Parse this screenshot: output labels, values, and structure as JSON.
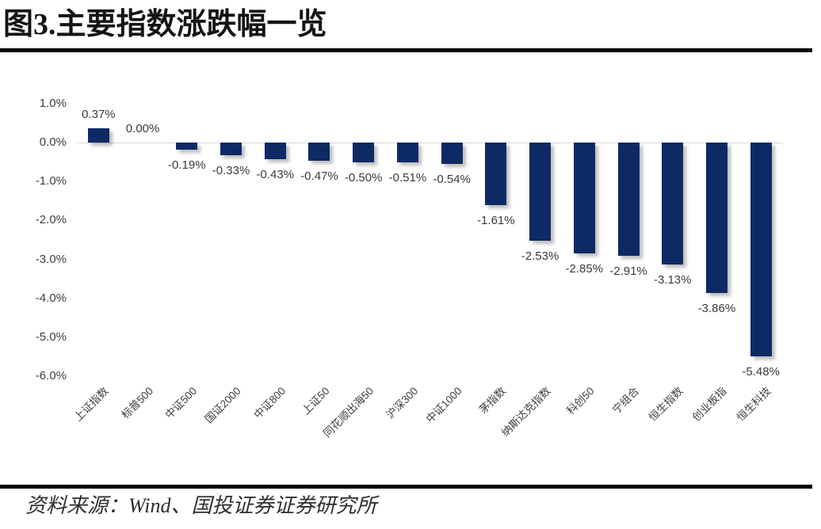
{
  "figure": {
    "title": "图3.主要指数涨跌幅一览",
    "source": "资料来源：Wind、国投证券证券研究所"
  },
  "chart_data": {
    "type": "bar",
    "title": "图3.主要指数涨跌幅一览",
    "categories": [
      "上证指数",
      "标普500",
      "中证500",
      "国证2000",
      "中证800",
      "上证50",
      "同花顺出海50",
      "沪深300",
      "中证1000",
      "茅指数",
      "纳斯达克指数",
      "科创50",
      "宁组合",
      "恒生指数",
      "创业板指",
      "恒生科技"
    ],
    "values": [
      0.37,
      0.0,
      -0.19,
      -0.33,
      -0.43,
      -0.47,
      -0.5,
      -0.51,
      -0.54,
      -1.61,
      -2.53,
      -2.85,
      -2.91,
      -3.13,
      -3.86,
      -5.48
    ],
    "value_labels": [
      "0.37%",
      "0.00%",
      "-0.19%",
      "-0.33%",
      "-0.43%",
      "-0.47%",
      "-0.50%",
      "-0.51%",
      "-0.54%",
      "-1.61%",
      "-2.53%",
      "-2.85%",
      "-2.91%",
      "-3.13%",
      "-3.86%",
      "-5.48%"
    ],
    "unit": "%",
    "xlabel": "",
    "ylabel": "",
    "ylim": [
      -6.0,
      1.0
    ],
    "y_ticks": [
      1.0,
      0.0,
      -1.0,
      -2.0,
      -3.0,
      -4.0,
      -5.0,
      -6.0
    ],
    "y_tick_labels": [
      "1.0%",
      "0.0%",
      "-1.0%",
      "-2.0%",
      "-3.0%",
      "-4.0%",
      "-5.0%",
      "-6.0%"
    ],
    "bar_color": "#0E2A64",
    "gridline_color": "#d9d9d9",
    "grid": "zero-line-only",
    "legend": "none",
    "x_label_rotation_deg": -45
  }
}
